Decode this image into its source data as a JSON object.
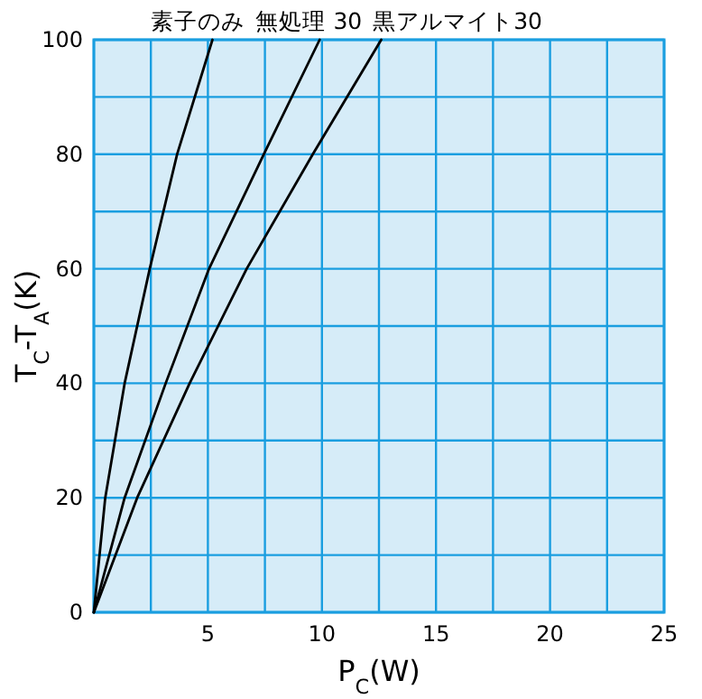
{
  "chart_data": {
    "type": "line",
    "xlabel": "P$_{C}$(W)",
    "ylabel": "T$_{C}$-T$_{A}$(K)",
    "xlim": [
      0,
      25
    ],
    "ylim": [
      0,
      100
    ],
    "xticks": [
      {
        "value": 0,
        "label": null
      },
      {
        "value": 2.5,
        "label": null
      },
      5,
      {
        "value": 7.5,
        "label": null
      },
      10,
      {
        "value": 12.5,
        "label": null
      },
      15,
      {
        "value": 17.5,
        "label": null
      },
      20,
      {
        "value": 22.5,
        "label": null
      },
      25
    ],
    "yticks": [
      0,
      {
        "value": 10,
        "label": null
      },
      20,
      {
        "value": 30,
        "label": null
      },
      40,
      {
        "value": 50,
        "label": null
      },
      60,
      {
        "value": 70,
        "label": null
      },
      80,
      {
        "value": 90,
        "label": null
      },
      100
    ],
    "grid": true,
    "marker": "none",
    "line_style": "solid",
    "series": [
      {
        "name": "素子のみ",
        "color": "#000000",
        "x": [
          0,
          0.5,
          1.35,
          2.45,
          3.65,
          5.2
        ],
        "values": [
          0,
          20,
          40,
          60,
          80,
          100
        ]
      },
      {
        "name": "無処理 30",
        "color": "#000000",
        "x": [
          0,
          1.35,
          3.15,
          5.05,
          7.45,
          9.9
        ],
        "values": [
          0,
          20,
          40,
          60,
          80,
          100
        ]
      },
      {
        "name": "黒アルマイト30",
        "color": "#000000",
        "x": [
          0,
          1.9,
          4.2,
          6.7,
          9.6,
          12.6
        ],
        "values": [
          0,
          20,
          40,
          60,
          80,
          100
        ]
      }
    ]
  }
}
